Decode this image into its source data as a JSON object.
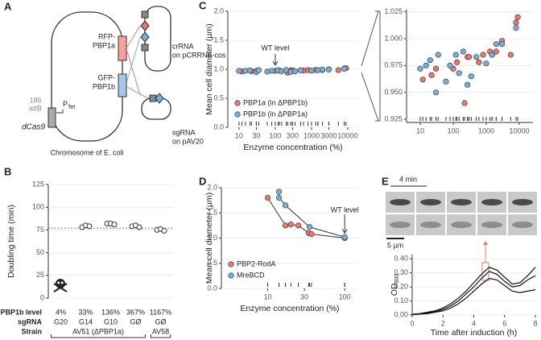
{
  "diagram": {
    "panel_label": "A",
    "attb": [
      "186",
      "attB"
    ],
    "promoter": "P",
    "promoter_sub": "Tet",
    "dcas9": "dCas9",
    "rfp": [
      "RFP-",
      "PBP1a"
    ],
    "gfp": [
      "GFP-",
      "PBP1b"
    ],
    "chromosome": "Chromosome of E. coli",
    "crrna": [
      "crRNA",
      "on pCRRNA-cos"
    ],
    "sgrna": [
      "sgRNA",
      "on pAV20"
    ]
  },
  "chart_data": [
    {
      "type": "dot",
      "panel_label": "B",
      "ylabel": "Doubling time (min)",
      "categories": [
        "4%",
        "33%",
        "136%",
        "367%",
        "1167%"
      ],
      "values": [
        null,
        [
          78,
          80,
          79
        ],
        [
          82,
          82,
          81
        ],
        [
          79,
          80,
          78
        ],
        [
          75,
          76,
          74
        ]
      ],
      "reference": 77,
      "ylim": [
        0,
        125
      ],
      "yticks": [
        0,
        25,
        50,
        75,
        100,
        125
      ],
      "grid": true,
      "row_labels": [
        "PBP1b level",
        "sgRNA",
        "Strain"
      ],
      "sgrna": [
        "G20",
        "G14",
        "G10",
        "GØ",
        "GØ"
      ],
      "strains": [
        "AV51 (ΔPBP1a)",
        "AV58"
      ]
    },
    {
      "type": "scatter",
      "panel_label": "C",
      "ylabel": "Mean cell diameter (µm)",
      "xlabel": "Enzyme concentration (%)",
      "xlog": true,
      "xlim": [
        4.9,
        19500
      ],
      "xticks": [
        10,
        30,
        100,
        300,
        1000,
        3000,
        10000
      ],
      "ylim": [
        0,
        2
      ],
      "yticks": [
        {
          "value": 0,
          "label": "0.0"
        },
        {
          "value": 0.5,
          "label": "0.5"
        },
        {
          "value": 1,
          "label": "1.0"
        },
        {
          "value": 1.5,
          "label": "1.5"
        },
        {
          "value": 2,
          "label": "2.0"
        }
      ],
      "grid": true,
      "annotation": {
        "text": "WT level",
        "x": 100
      },
      "series": [
        {
          "name": "PBP1a (in ΔPBP1b)",
          "color": "#e8776c",
          "x": [
            12,
            22,
            30,
            100,
            130,
            220,
            270,
            300,
            600,
            800,
            1300,
            1500,
            2000,
            3000,
            5500,
            8000,
            9000
          ],
          "values": [
            0.962,
            0.966,
            0.972,
            0.972,
            0.978,
            0.94,
            0.983,
            0.983,
            0.978,
            0.985,
            0.988,
            0.985,
            0.988,
            0.998,
            0.985,
            1.015,
            1.02
          ]
        },
        {
          "name": "PBP1b (in ΔPBP1a)",
          "color": "#7aaed6",
          "x": [
            10,
            15,
            20,
            30,
            35,
            60,
            80,
            120,
            150,
            200,
            270,
            350,
            500,
            1000,
            1500,
            2000,
            3000,
            8000
          ],
          "values": [
            0.972,
            0.975,
            0.98,
            0.95,
            0.985,
            0.96,
            0.975,
            0.985,
            0.968,
            0.988,
            0.957,
            0.965,
            0.983,
            0.977,
            0.985,
            0.995,
            0.995,
            1.01
          ]
        }
      ],
      "inset": {
        "xlim": [
          3.85,
          26000
        ],
        "xticks": [
          10,
          100,
          1000,
          10000
        ],
        "ylim": [
          0.922,
          1.027
        ],
        "yticks": [
          {
            "value": 0.925,
            "label": "0.925"
          },
          {
            "value": 0.95,
            "label": "0.950"
          },
          {
            "value": 0.975,
            "label": "0.975"
          },
          {
            "value": 1,
            "label": "1.000"
          },
          {
            "value": 1.025,
            "label": "1.025"
          }
        ]
      }
    },
    {
      "type": "scatter",
      "panel_label": "D",
      "ylabel": "Mean cell diameter (µm)",
      "xlabel": "Enzyme concentration (%)",
      "xlog": true,
      "lines": true,
      "xlim": [
        2.5,
        150
      ],
      "xticks": [
        10,
        30,
        100
      ],
      "ylim": [
        0,
        2
      ],
      "yticks": [
        {
          "value": 0,
          "label": "0.0"
        },
        {
          "value": 0.5,
          "label": "0.5"
        },
        {
          "value": 1,
          "label": "1.0"
        },
        {
          "value": 1.5,
          "label": "1.5"
        },
        {
          "value": 2,
          "label": "2.0"
        }
      ],
      "grid": true,
      "annotation": {
        "text": "WT level",
        "x": 100
      },
      "series": [
        {
          "name": "PBP2-RodA",
          "color": "#e8776c",
          "x": [
            10,
            17,
            20,
            25,
            34,
            37,
            100
          ],
          "values": [
            1.8,
            1.25,
            1.27,
            1.25,
            1.1,
            1.08,
            1.0
          ]
        },
        {
          "name": "MreBCD",
          "color": "#7aaed6",
          "x": [
            14,
            14,
            17,
            35,
            100
          ],
          "values": [
            1.92,
            1.8,
            1.65,
            1.22,
            1.02
          ]
        }
      ]
    },
    {
      "type": "line",
      "panel_label": "E",
      "ylabel": "OD",
      "ylabel_sub": "600",
      "xlabel": "Time after induction (h)",
      "time_bar": "4 min",
      "scale_bar": "5 µm",
      "x": [
        0,
        0.5,
        1,
        1.5,
        2,
        2.5,
        3,
        3.5,
        4,
        4.5,
        5,
        5.5,
        6,
        6.5,
        7,
        7.5,
        8
      ],
      "xlim": [
        0,
        8
      ],
      "xticks": [
        0,
        2,
        4,
        6,
        8
      ],
      "ylim": [
        0,
        0.43
      ],
      "yticks": [
        {
          "value": 0,
          "label": "0.00"
        },
        {
          "value": 0.1,
          "label": "0.10"
        },
        {
          "value": 0.2,
          "label": "0.20"
        },
        {
          "value": 0.3,
          "label": "0.30"
        },
        {
          "value": 0.4,
          "label": "0.40"
        }
      ],
      "grid": true,
      "series": [
        {
          "color": "#111111",
          "values": [
            0.005,
            0.01,
            0.02,
            0.03,
            0.05,
            0.08,
            0.12,
            0.17,
            0.23,
            0.29,
            0.34,
            0.32,
            0.27,
            0.22,
            0.23,
            0.28,
            0.34
          ]
        },
        {
          "color": "#111111",
          "values": [
            0.005,
            0.008,
            0.015,
            0.025,
            0.04,
            0.065,
            0.1,
            0.15,
            0.2,
            0.26,
            0.31,
            0.29,
            0.24,
            0.2,
            0.21,
            0.25,
            0.28
          ]
        },
        {
          "color": "#111111",
          "values": [
            0.003,
            0.006,
            0.01,
            0.02,
            0.03,
            0.05,
            0.08,
            0.12,
            0.17,
            0.22,
            0.26,
            0.25,
            0.21,
            0.17,
            0.16,
            0.17,
            0.18
          ]
        }
      ]
    }
  ]
}
